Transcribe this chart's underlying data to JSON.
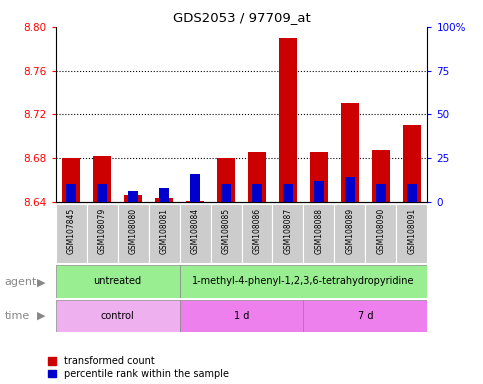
{
  "title": "GDS2053 / 97709_at",
  "samples": [
    "GSM107845",
    "GSM108079",
    "GSM108080",
    "GSM108081",
    "GSM108084",
    "GSM108085",
    "GSM108086",
    "GSM108087",
    "GSM108088",
    "GSM108089",
    "GSM108090",
    "GSM108091"
  ],
  "red_values": [
    8.68,
    8.682,
    8.646,
    8.643,
    8.641,
    8.68,
    8.685,
    8.79,
    8.685,
    8.73,
    8.687,
    8.71
  ],
  "blue_values": [
    5,
    5,
    3,
    4,
    8,
    5,
    5,
    5,
    6,
    7,
    5,
    5
  ],
  "ylim_left": [
    8.64,
    8.8
  ],
  "ylim_right": [
    0,
    100
  ],
  "yticks_left": [
    8.64,
    8.68,
    8.72,
    8.76,
    8.8
  ],
  "yticks_right": [
    0,
    25,
    50,
    75,
    100
  ],
  "ytick_labels_right": [
    "0",
    "25",
    "50",
    "75",
    "100%"
  ],
  "bar_bottom": 8.64,
  "blue_scale": 0.0032,
  "legend_red": "transformed count",
  "legend_blue": "percentile rank within the sample",
  "bar_color_red": "#CC0000",
  "bar_color_blue": "#0000CC",
  "agent_untreated_label": "untreated",
  "agent_treated_label": "1-methyl-4-phenyl-1,2,3,6-tetrahydropyridine",
  "agent_untreated_color": "#98EE90",
  "agent_treated_color": "#98EE90",
  "time_control_label": "control",
  "time_1d_label": "1 d",
  "time_7d_label": "7 d",
  "time_control_color": "#EEB0EE",
  "time_1d_color": "#EE80EE",
  "time_7d_color": "#EE80EE",
  "label_color": "#888888",
  "xticklabel_bg": "#CCCCCC"
}
